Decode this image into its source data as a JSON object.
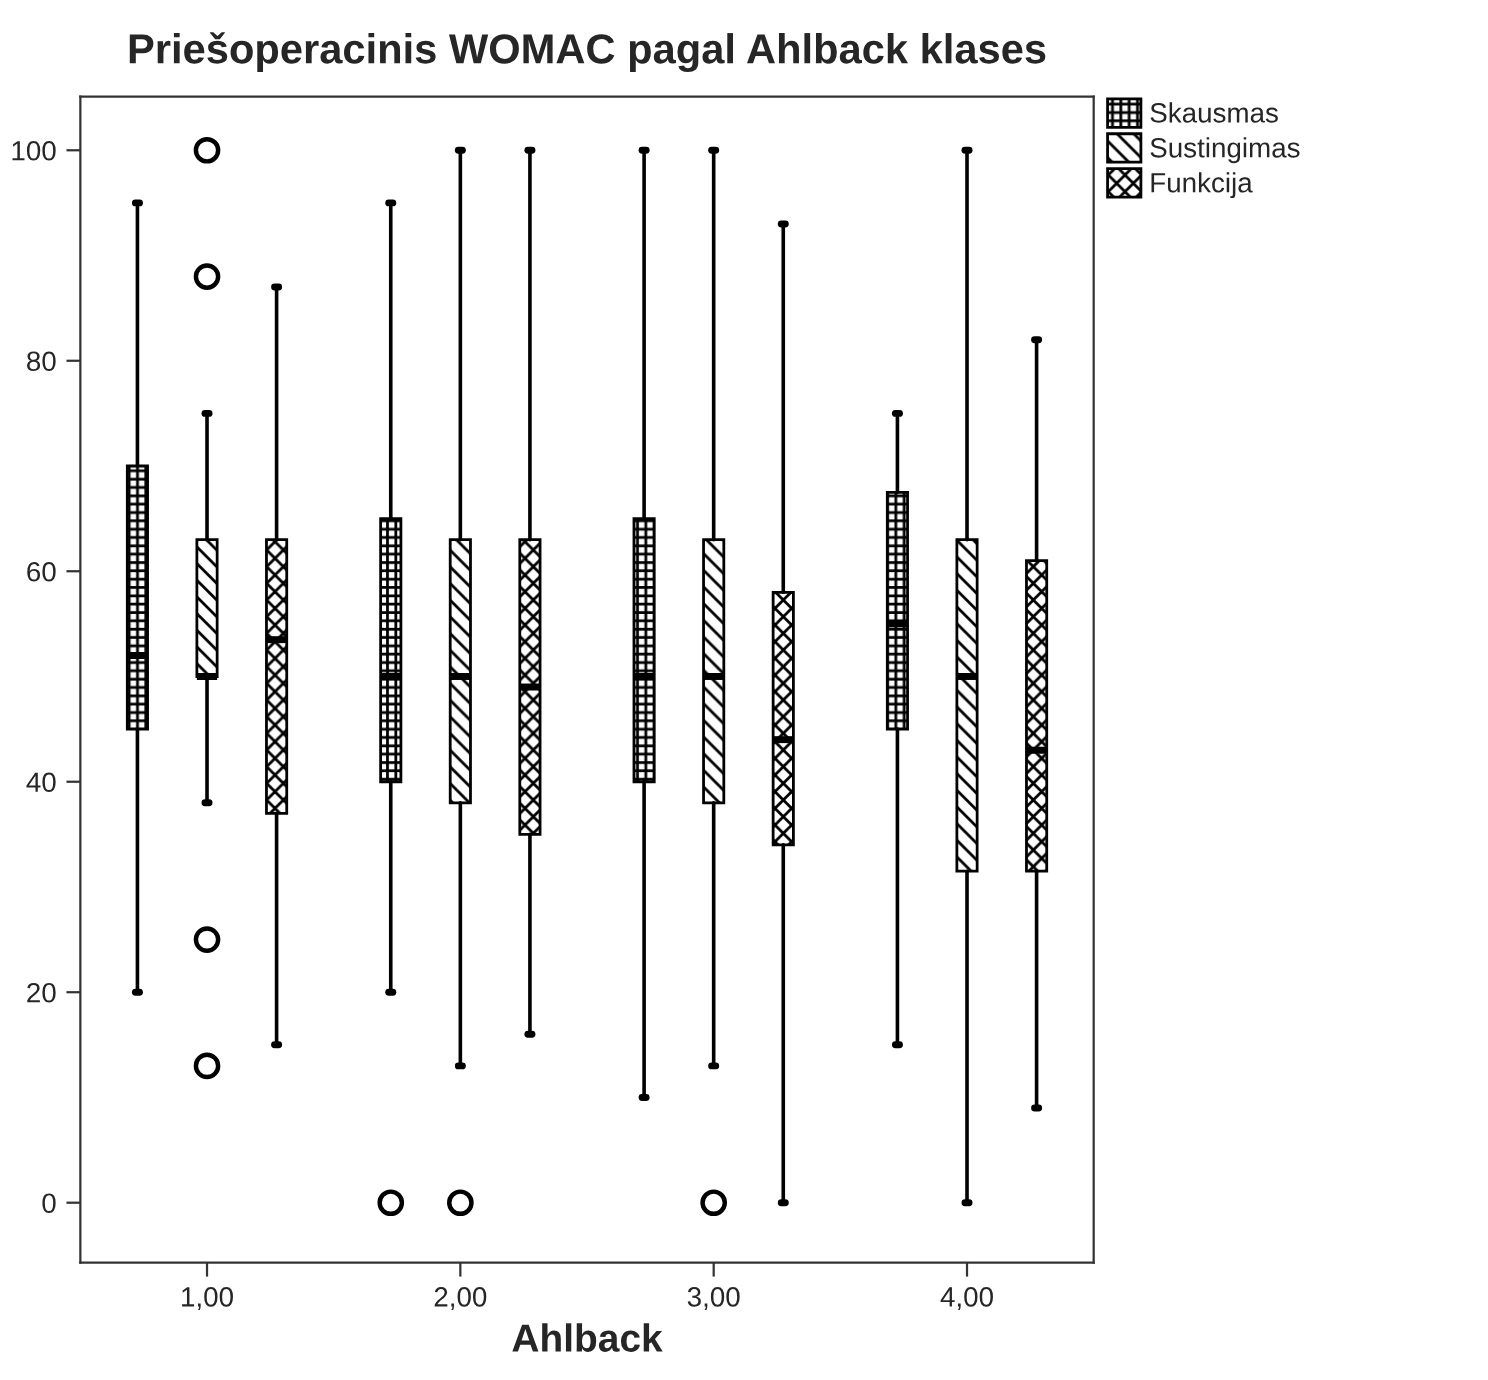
{
  "chart_data": {
    "type": "box",
    "title": "Priešoperacinis WOMAC pagal Ahlback klases",
    "xlabel": "Ahlback",
    "categories": [
      "1,00",
      "2,00",
      "3,00",
      "4,00"
    ],
    "ylim": [
      -5.7,
      105.1
    ],
    "yticks": [
      0,
      20,
      40,
      60,
      80,
      100
    ],
    "grid": false,
    "legend": "top right",
    "series": [
      {
        "name": "Skausmas",
        "color": "#000000",
        "boxes": [
          {
            "low": 20,
            "q1": 45,
            "median": 52,
            "q3": 70,
            "high": 95
          },
          {
            "low": 20,
            "q1": 40,
            "median": 50,
            "q3": 65,
            "high": 95,
            "outliers": [
              0
            ]
          },
          {
            "low": 10,
            "q1": 40,
            "median": 50,
            "q3": 65,
            "high": 100
          },
          {
            "low": 15,
            "q1": 45,
            "median": 55,
            "q3": 67.5,
            "high": 75
          }
        ]
      },
      {
        "name": "Sustingimas",
        "color": "#000000",
        "boxes": [
          {
            "low": 38,
            "q1": 50,
            "median": 50,
            "q3": 63,
            "high": 75,
            "outliers": [
              100,
              88,
              25,
              13
            ]
          },
          {
            "low": 13,
            "q1": 38,
            "median": 50,
            "q3": 63,
            "high": 100,
            "outliers": [
              0
            ]
          },
          {
            "low": 13,
            "q1": 38,
            "median": 50,
            "q3": 63,
            "high": 100,
            "outliers": [
              0
            ]
          },
          {
            "low": 0,
            "q1": 31.5,
            "median": 50,
            "q3": 63,
            "high": 100
          }
        ]
      },
      {
        "name": "Funkcija",
        "color": "#000000",
        "boxes": [
          {
            "low": 15,
            "q1": 37,
            "median": 53.5,
            "q3": 63,
            "high": 87
          },
          {
            "low": 16,
            "q1": 35,
            "median": 49,
            "q3": 63,
            "high": 100
          },
          {
            "low": 0,
            "q1": 34,
            "median": 44,
            "q3": 58,
            "high": 93
          },
          {
            "low": 9,
            "q1": 31.5,
            "median": 43,
            "q3": 61,
            "high": 82
          }
        ]
      }
    ]
  }
}
